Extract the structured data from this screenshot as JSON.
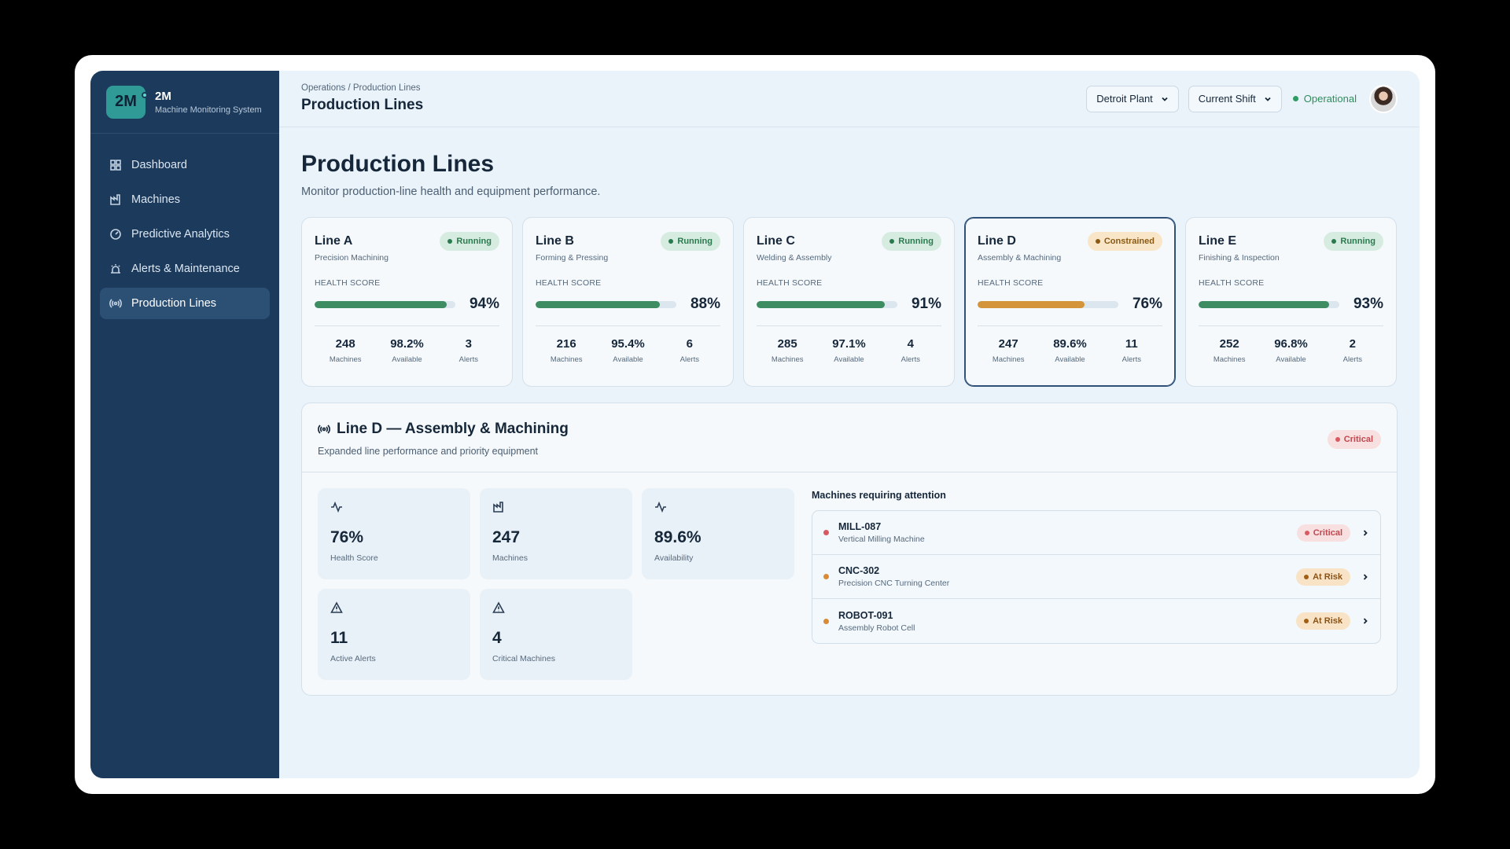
{
  "brand": {
    "logo": "2M",
    "name": "2M",
    "subtitle": "Machine Monitoring System"
  },
  "sidebar": {
    "items": [
      {
        "label": "Dashboard",
        "icon": "grid-icon",
        "active": false
      },
      {
        "label": "Machines",
        "icon": "factory-icon",
        "active": false
      },
      {
        "label": "Predictive Analytics",
        "icon": "gauge-icon",
        "active": false
      },
      {
        "label": "Alerts & Maintenance",
        "icon": "siren-icon",
        "active": false
      },
      {
        "label": "Production Lines",
        "icon": "broadcast-icon",
        "active": true
      }
    ]
  },
  "header": {
    "breadcrumb": "Operations / Production Lines",
    "title": "Production Lines",
    "plant_select": "Detroit Plant",
    "shift_select": "Current Shift",
    "status": "Operational"
  },
  "page": {
    "title": "Production Lines",
    "subtitle": "Monitor production-line health and equipment performance."
  },
  "lines": [
    {
      "name": "Line A",
      "desc": "Precision Machining",
      "status": "Running",
      "health_label": "HEALTH SCORE",
      "health": "94%",
      "health_value": 0.94,
      "machines": "248",
      "available": "98.2%",
      "alerts": "3",
      "machines_label": "Machines",
      "available_label": "Available",
      "alerts_label": "Alerts"
    },
    {
      "name": "Line B",
      "desc": "Forming & Pressing",
      "status": "Running",
      "health_label": "HEALTH SCORE",
      "health": "88%",
      "health_value": 0.88,
      "machines": "216",
      "available": "95.4%",
      "alerts": "6",
      "machines_label": "Machines",
      "available_label": "Available",
      "alerts_label": "Alerts"
    },
    {
      "name": "Line C",
      "desc": "Welding & Assembly",
      "status": "Running",
      "health_label": "HEALTH SCORE",
      "health": "91%",
      "health_value": 0.91,
      "machines": "285",
      "available": "97.1%",
      "alerts": "4",
      "machines_label": "Machines",
      "available_label": "Available",
      "alerts_label": "Alerts"
    },
    {
      "name": "Line D",
      "desc": "Assembly & Machining",
      "status": "Constrained",
      "health_label": "HEALTH SCORE",
      "health": "76%",
      "health_value": 0.76,
      "machines": "247",
      "available": "89.6%",
      "alerts": "11",
      "machines_label": "Machines",
      "available_label": "Available",
      "alerts_label": "Alerts"
    },
    {
      "name": "Line E",
      "desc": "Finishing & Inspection",
      "status": "Running",
      "health_label": "HEALTH SCORE",
      "health": "93%",
      "health_value": 0.93,
      "machines": "252",
      "available": "96.8%",
      "alerts": "2",
      "machines_label": "Machines",
      "available_label": "Available",
      "alerts_label": "Alerts"
    }
  ],
  "colors": {
    "healthy": "#3d8c62",
    "warning": "#d4943a",
    "critical": "#d85a60",
    "risk": "#d98a35"
  },
  "detail": {
    "title": "Line D — Assembly & Machining",
    "subtitle": "Expanded line performance and priority equipment",
    "status": "Critical",
    "kpis": [
      {
        "value": "76%",
        "label": "Health Score",
        "icon": "activity-icon"
      },
      {
        "value": "247",
        "label": "Machines",
        "icon": "factory-icon"
      },
      {
        "value": "89.6%",
        "label": "Availability",
        "icon": "activity-icon"
      },
      {
        "value": "11",
        "label": "Active Alerts",
        "icon": "warning-icon"
      },
      {
        "value": "4",
        "label": "Critical Machines",
        "icon": "warning-icon"
      }
    ],
    "attention_title": "Machines requiring attention",
    "machines": [
      {
        "id": "MILL-087",
        "desc": "Vertical Milling Machine",
        "status": "Critical"
      },
      {
        "id": "CNC-302",
        "desc": "Precision CNC Turning Center",
        "status": "At Risk"
      },
      {
        "id": "ROBOT-091",
        "desc": "Assembly Robot Cell",
        "status": "At Risk"
      }
    ]
  }
}
